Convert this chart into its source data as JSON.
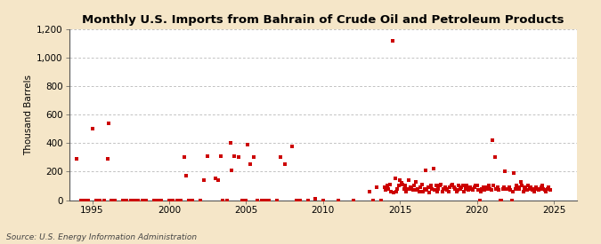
{
  "title": "Monthly U.S. Imports from Bahrain of Crude Oil and Petroleum Products",
  "ylabel": "Thousand Barrels",
  "source": "Source: U.S. Energy Information Administration",
  "marker_color": "#cc0000",
  "background_color": "#f5e6c8",
  "plot_background": "#ffffff",
  "grid_color": "#aaaaaa",
  "ylim": [
    0,
    1200
  ],
  "xlim": [
    1993.5,
    2026.5
  ],
  "yticks": [
    0,
    200,
    400,
    600,
    800,
    1000,
    1200
  ],
  "ytick_labels": [
    "0",
    "200",
    "400",
    "600",
    "800",
    "1,000",
    "1,200"
  ],
  "xticks": [
    1995,
    2000,
    2005,
    2010,
    2015,
    2020,
    2025
  ],
  "data_x": [
    1994.0,
    1994.25,
    1994.5,
    1994.75,
    1995.0,
    1995.25,
    1995.5,
    1995.75,
    1996.0,
    1996.08,
    1996.25,
    1996.5,
    1997.0,
    1997.25,
    1997.5,
    1997.75,
    1998.0,
    1998.25,
    1998.5,
    1999.0,
    1999.25,
    1999.5,
    2000.0,
    2000.25,
    2000.5,
    2000.75,
    2001.0,
    2001.08,
    2001.25,
    2001.5,
    2002.0,
    2002.25,
    2002.5,
    2003.0,
    2003.17,
    2003.33,
    2003.5,
    2003.75,
    2004.0,
    2004.08,
    2004.25,
    2004.5,
    2004.75,
    2005.0,
    2005.08,
    2005.25,
    2005.5,
    2005.75,
    2006.0,
    2006.25,
    2006.5,
    2007.0,
    2007.25,
    2007.5,
    2008.0,
    2008.25,
    2008.5,
    2009.0,
    2009.5,
    2010.0,
    2011.0,
    2012.0,
    2013.0,
    2013.25,
    2013.5,
    2013.75,
    2014.0,
    2014.08,
    2014.17,
    2014.25,
    2014.33,
    2014.42,
    2014.5,
    2014.58,
    2014.67,
    2014.75,
    2014.83,
    2014.92,
    2015.0,
    2015.08,
    2015.17,
    2015.25,
    2015.33,
    2015.42,
    2015.5,
    2015.58,
    2015.67,
    2015.75,
    2015.83,
    2015.92,
    2016.0,
    2016.08,
    2016.17,
    2016.25,
    2016.33,
    2016.42,
    2016.5,
    2016.58,
    2016.67,
    2016.75,
    2016.83,
    2016.92,
    2017.0,
    2017.08,
    2017.17,
    2017.25,
    2017.33,
    2017.42,
    2017.5,
    2017.58,
    2017.67,
    2017.75,
    2017.83,
    2017.92,
    2018.0,
    2018.08,
    2018.17,
    2018.25,
    2018.33,
    2018.42,
    2018.5,
    2018.58,
    2018.67,
    2018.75,
    2018.83,
    2018.92,
    2019.0,
    2019.08,
    2019.17,
    2019.25,
    2019.33,
    2019.42,
    2019.5,
    2019.58,
    2019.67,
    2019.75,
    2019.83,
    2019.92,
    2020.0,
    2020.08,
    2020.17,
    2020.25,
    2020.33,
    2020.42,
    2020.5,
    2020.58,
    2020.67,
    2020.75,
    2020.83,
    2020.92,
    2021.0,
    2021.08,
    2021.17,
    2021.25,
    2021.33,
    2021.42,
    2021.5,
    2021.58,
    2021.67,
    2021.75,
    2021.83,
    2021.92,
    2022.0,
    2022.08,
    2022.17,
    2022.25,
    2022.33,
    2022.42,
    2022.5,
    2022.58,
    2022.67,
    2022.75,
    2022.83,
    2022.92,
    2023.0,
    2023.08,
    2023.17,
    2023.25,
    2023.33,
    2023.42,
    2023.5,
    2023.58,
    2023.67,
    2023.75,
    2023.83,
    2023.92,
    2024.0,
    2024.08,
    2024.17,
    2024.25,
    2024.33,
    2024.42,
    2024.5,
    2024.58,
    2024.67,
    2024.75
  ],
  "data_y": [
    290,
    0,
    0,
    0,
    500,
    0,
    0,
    0,
    290,
    540,
    0,
    0,
    0,
    0,
    0,
    0,
    0,
    0,
    0,
    0,
    0,
    0,
    0,
    0,
    0,
    0,
    300,
    170,
    0,
    0,
    0,
    140,
    310,
    150,
    140,
    310,
    0,
    0,
    400,
    210,
    310,
    300,
    0,
    0,
    390,
    250,
    300,
    0,
    0,
    0,
    0,
    0,
    300,
    250,
    380,
    0,
    0,
    0,
    10,
    0,
    0,
    0,
    60,
    0,
    90,
    0,
    90,
    70,
    100,
    80,
    110,
    60,
    1120,
    50,
    150,
    60,
    80,
    100,
    140,
    120,
    110,
    80,
    100,
    60,
    80,
    140,
    90,
    80,
    70,
    100,
    130,
    70,
    80,
    60,
    90,
    110,
    60,
    80,
    210,
    70,
    90,
    50,
    100,
    80,
    220,
    70,
    100,
    60,
    80,
    100,
    110,
    60,
    80,
    90,
    80,
    70,
    60,
    90,
    100,
    110,
    90,
    80,
    60,
    70,
    100,
    80,
    90,
    100,
    60,
    80,
    100,
    70,
    80,
    90,
    80,
    70,
    90,
    100,
    100,
    70,
    0,
    60,
    80,
    90,
    70,
    80,
    90,
    100,
    80,
    70,
    420,
    100,
    300,
    80,
    90,
    70,
    0,
    0,
    80,
    90,
    200,
    80,
    80,
    90,
    70,
    0,
    60,
    190,
    80,
    100,
    90,
    80,
    130,
    100,
    60,
    80,
    90,
    70,
    100,
    80,
    90,
    70,
    80,
    60,
    90,
    80,
    70,
    80,
    90,
    100,
    80,
    70,
    60,
    80,
    90,
    70
  ]
}
